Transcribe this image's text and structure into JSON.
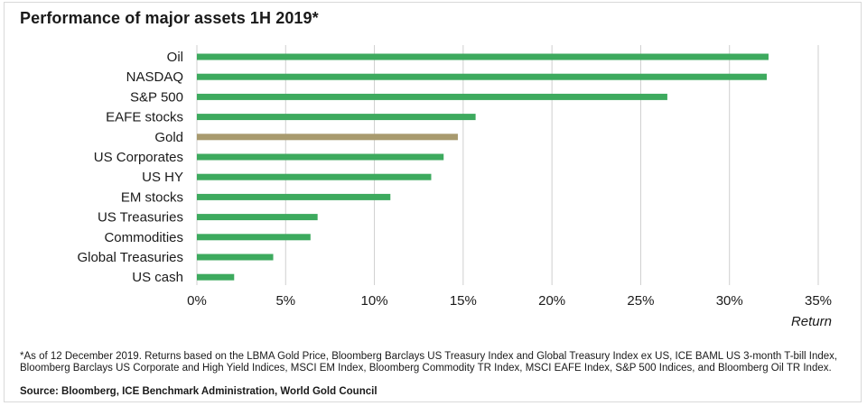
{
  "title": "Performance of major assets 1H 2019*",
  "footnote": "*As of 12 December 2019. Returns based on the LBMA Gold Price, Bloomberg Barclays US Treasury Index and Global Treasury Index ex US, ICE BAML US 3-month T-bill Index, Bloomberg Barclays US Corporate and High Yield Indices, MSCI EM Index, Bloomberg Commodity TR Index, MSCI EAFE Index, S&P 500 Indices, and Bloomberg Oil TR Index.",
  "source": "Source: Bloomberg, ICE Benchmark Administration, World Gold Council",
  "colors": {
    "bar": "#3daa5e",
    "highlight": "#a89a6e"
  },
  "chart_data": {
    "type": "bar",
    "orientation": "horizontal",
    "categories": [
      "Oil",
      "NASDAQ",
      "S&P 500",
      "EAFE stocks",
      "Gold",
      "US Corporates",
      "US HY",
      "EM stocks",
      "US Treasuries",
      "Commodities",
      "Global Treasuries",
      "US cash"
    ],
    "values": [
      32.2,
      32.1,
      26.5,
      15.7,
      14.7,
      13.9,
      13.2,
      10.9,
      6.8,
      6.4,
      4.3,
      2.1
    ],
    "highlight_category": "Gold",
    "xlabel": "Return",
    "xlim": [
      0,
      35
    ],
    "xticks": [
      "0%",
      "5%",
      "10%",
      "15%",
      "20%",
      "25%",
      "30%",
      "35%"
    ],
    "grid": "vertical"
  }
}
